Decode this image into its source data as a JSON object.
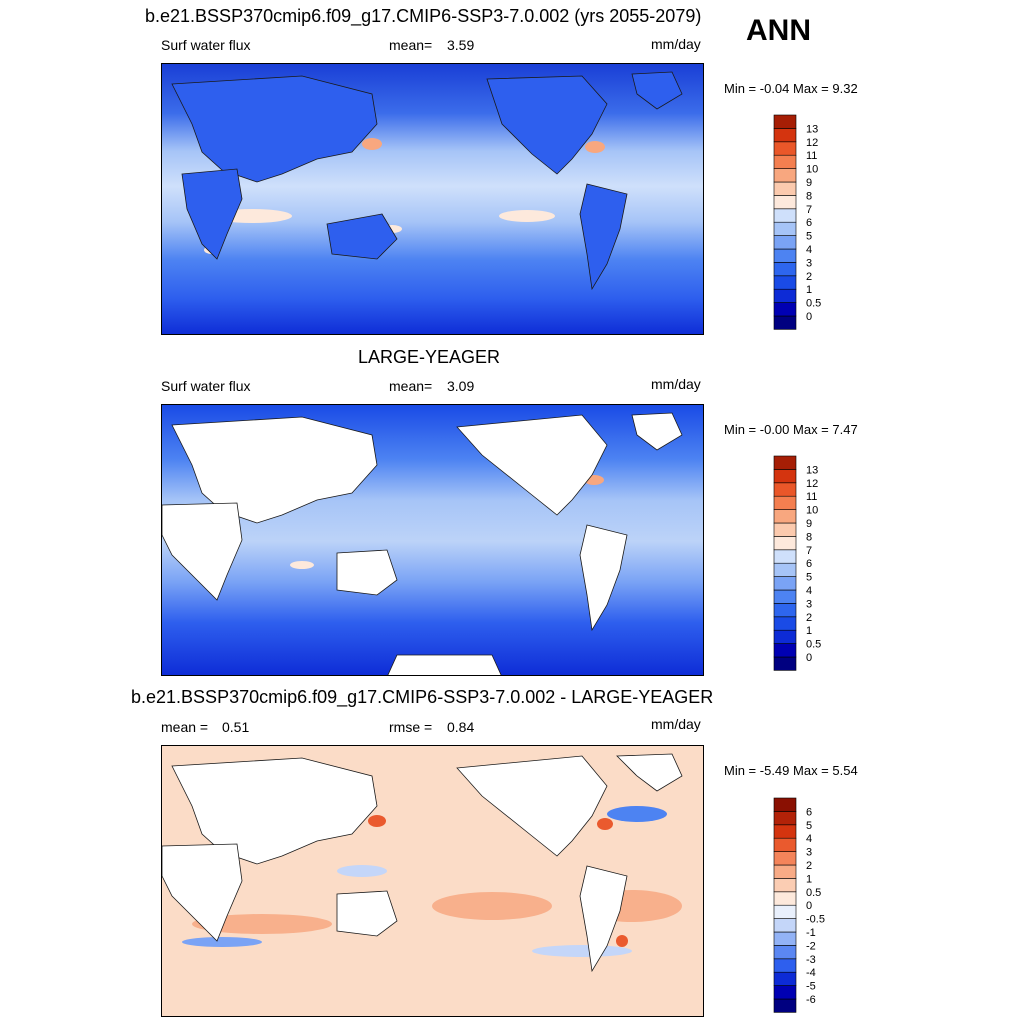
{
  "season": "ANN",
  "panels": [
    {
      "id": "model",
      "title": "b.e21.BSSP370cmip6.f09_g17.CMIP6-SSP3-7.0.002 (yrs 2055-2079)",
      "variable": "Surf water flux",
      "stat_label": "mean=",
      "stat_value": "3.59",
      "units": "mm/day",
      "minmax": "Min =  -0.04 Max =   9.32",
      "land_masked": false
    },
    {
      "id": "obs",
      "title": "LARGE-YEAGER",
      "variable": "Surf water flux",
      "stat_label": "mean=",
      "stat_value": "3.09",
      "units": "mm/day",
      "minmax": "Min =  -0.00 Max =   7.47",
      "land_masked": true
    },
    {
      "id": "diff",
      "title": "b.e21.BSSP370cmip6.f09_g17.CMIP6-SSP3-7.0.002 - LARGE-YEAGER",
      "mean_label": "mean =",
      "mean_value": "0.51",
      "rmse_label": "rmse =",
      "rmse_value": "0.84",
      "units": "mm/day",
      "minmax": "Min =  -5.49 Max =   5.54",
      "land_masked": true
    }
  ],
  "chart_data": [
    {
      "type": "heatmap",
      "title": "b.e21.BSSP370cmip6.f09_g17.CMIP6-SSP3-7.0.002 (yrs 2055-2079)",
      "variable": "Surf water flux",
      "units": "mm/day",
      "mean": 3.59,
      "min": -0.04,
      "max": 9.32,
      "colorbar_levels": [
        "0",
        "0.5",
        "1",
        "2",
        "3",
        "4",
        "5",
        "6",
        "7",
        "8",
        "9",
        "10",
        "11",
        "12",
        "13"
      ],
      "colors": [
        "#000080",
        "#0000b3",
        "#0d2bd6",
        "#1a4be6",
        "#2e66ee",
        "#4d83f2",
        "#7aa3f5",
        "#a6c4f7",
        "#cfe0fb",
        "#fde9dc",
        "#fbcaae",
        "#f8a77f",
        "#f47f50",
        "#ea5729",
        "#d4340f",
        "#a61e05"
      ]
    },
    {
      "type": "heatmap",
      "title": "LARGE-YEAGER",
      "variable": "Surf water flux",
      "units": "mm/day",
      "mean": 3.09,
      "min": -0.0,
      "max": 7.47,
      "colorbar_levels": [
        "0",
        "0.5",
        "1",
        "2",
        "3",
        "4",
        "5",
        "6",
        "7",
        "8",
        "9",
        "10",
        "11",
        "12",
        "13"
      ],
      "colors": [
        "#000080",
        "#0000b3",
        "#0d2bd6",
        "#1a4be6",
        "#2e66ee",
        "#4d83f2",
        "#7aa3f5",
        "#a6c4f7",
        "#cfe0fb",
        "#fde9dc",
        "#fbcaae",
        "#f8a77f",
        "#f47f50",
        "#ea5729",
        "#d4340f",
        "#a61e05"
      ]
    },
    {
      "type": "heatmap",
      "title": "b.e21.BSSP370cmip6.f09_g17.CMIP6-SSP3-7.0.002 - LARGE-YEAGER",
      "units": "mm/day",
      "mean": 0.51,
      "rmse": 0.84,
      "min": -5.49,
      "max": 5.54,
      "colorbar_levels": [
        "-6",
        "-5",
        "-4",
        "-3",
        "-2",
        "-1",
        "-0.5",
        "0",
        "0.5",
        "1",
        "2",
        "3",
        "4",
        "5",
        "6"
      ],
      "colors": [
        "#000080",
        "#0000b3",
        "#0d2bd6",
        "#2e5fee",
        "#5b87f2",
        "#93b3f6",
        "#c4d6f9",
        "#e9f0fc",
        "#fde9dc",
        "#fbcdb3",
        "#f8ab86",
        "#f4845a",
        "#ea5a2e",
        "#d4340f",
        "#b22208",
        "#8a1002"
      ]
    }
  ]
}
